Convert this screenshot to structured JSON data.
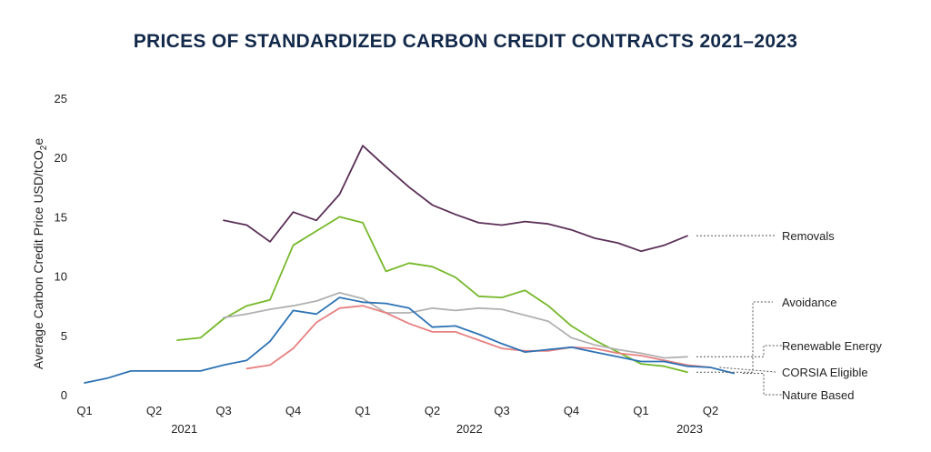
{
  "title": "PRICES OF STANDARDIZED CARBON CREDIT CONTRACTS 2021–2023",
  "chart_data": {
    "type": "line",
    "title": "PRICES OF STANDARDIZED CARBON CREDIT CONTRACTS 2021–2023",
    "ylabel": "Average Carbon Credit Price USD/tCO",
    "ylabel_sub": "2",
    "ylabel_suffix": "e",
    "ylim": [
      0,
      25
    ],
    "yticks": [
      "0",
      "5",
      "10",
      "15",
      "20",
      "25"
    ],
    "x_months_total": 29,
    "xtick_labels": [
      "Q1",
      "Q2",
      "Q3",
      "Q4",
      "Q1",
      "Q2",
      "Q3",
      "Q4",
      "Q1",
      "Q2"
    ],
    "year_labels": [
      "2021",
      "2022",
      "2023"
    ],
    "grid": false,
    "legend_placement": "right, with dotted leader lines",
    "series": [
      {
        "name": "Removals",
        "color": "#5a2f57",
        "start": 6,
        "values": [
          14.7,
          14.3,
          12.9,
          15.4,
          14.7,
          16.9,
          21.0,
          19.2,
          17.5,
          16.0,
          15.2,
          14.5,
          14.3,
          14.6,
          14.4,
          13.9,
          13.2,
          12.8,
          12.1,
          12.6,
          13.4
        ]
      },
      {
        "name": "Avoidance",
        "color": "#76b82a",
        "start": 4,
        "values": [
          4.6,
          4.8,
          6.4,
          7.5,
          8.0,
          12.6,
          13.8,
          15.0,
          14.5,
          10.4,
          11.1,
          10.8,
          9.9,
          8.3,
          8.2,
          8.8,
          7.5,
          5.8,
          4.6,
          3.6,
          2.6,
          2.4,
          1.9
        ]
      },
      {
        "name": "Renewable Energy",
        "color": "#b1b1b1",
        "start": 6,
        "values": [
          6.5,
          6.8,
          7.2,
          7.5,
          7.9,
          8.6,
          8.1,
          6.9,
          6.9,
          7.3,
          7.1,
          7.3,
          7.2,
          6.7,
          6.2,
          4.8,
          4.2,
          3.8,
          3.5,
          3.1,
          3.2
        ]
      },
      {
        "name": "CORSIA Eligible",
        "color": "#e88182",
        "start": 7,
        "values": [
          2.2,
          2.5,
          3.9,
          6.1,
          7.3,
          7.5,
          6.9,
          6.0,
          5.3,
          5.3,
          4.6,
          3.9,
          3.7,
          3.7,
          4.0,
          3.9,
          3.5,
          3.3,
          2.9,
          2.5,
          2.3
        ]
      },
      {
        "name": "Nature Based",
        "color": "#2e73b5",
        "start": 0,
        "values": [
          1.0,
          1.4,
          2.0,
          2.0,
          2.0,
          2.0,
          2.5,
          2.9,
          4.5,
          7.1,
          6.8,
          8.2,
          7.8,
          7.7,
          7.3,
          5.7,
          5.8,
          5.1,
          4.3,
          3.6,
          3.8,
          4.0,
          3.6,
          3.2,
          2.8,
          2.8,
          2.4,
          2.3,
          1.8
        ]
      }
    ]
  }
}
